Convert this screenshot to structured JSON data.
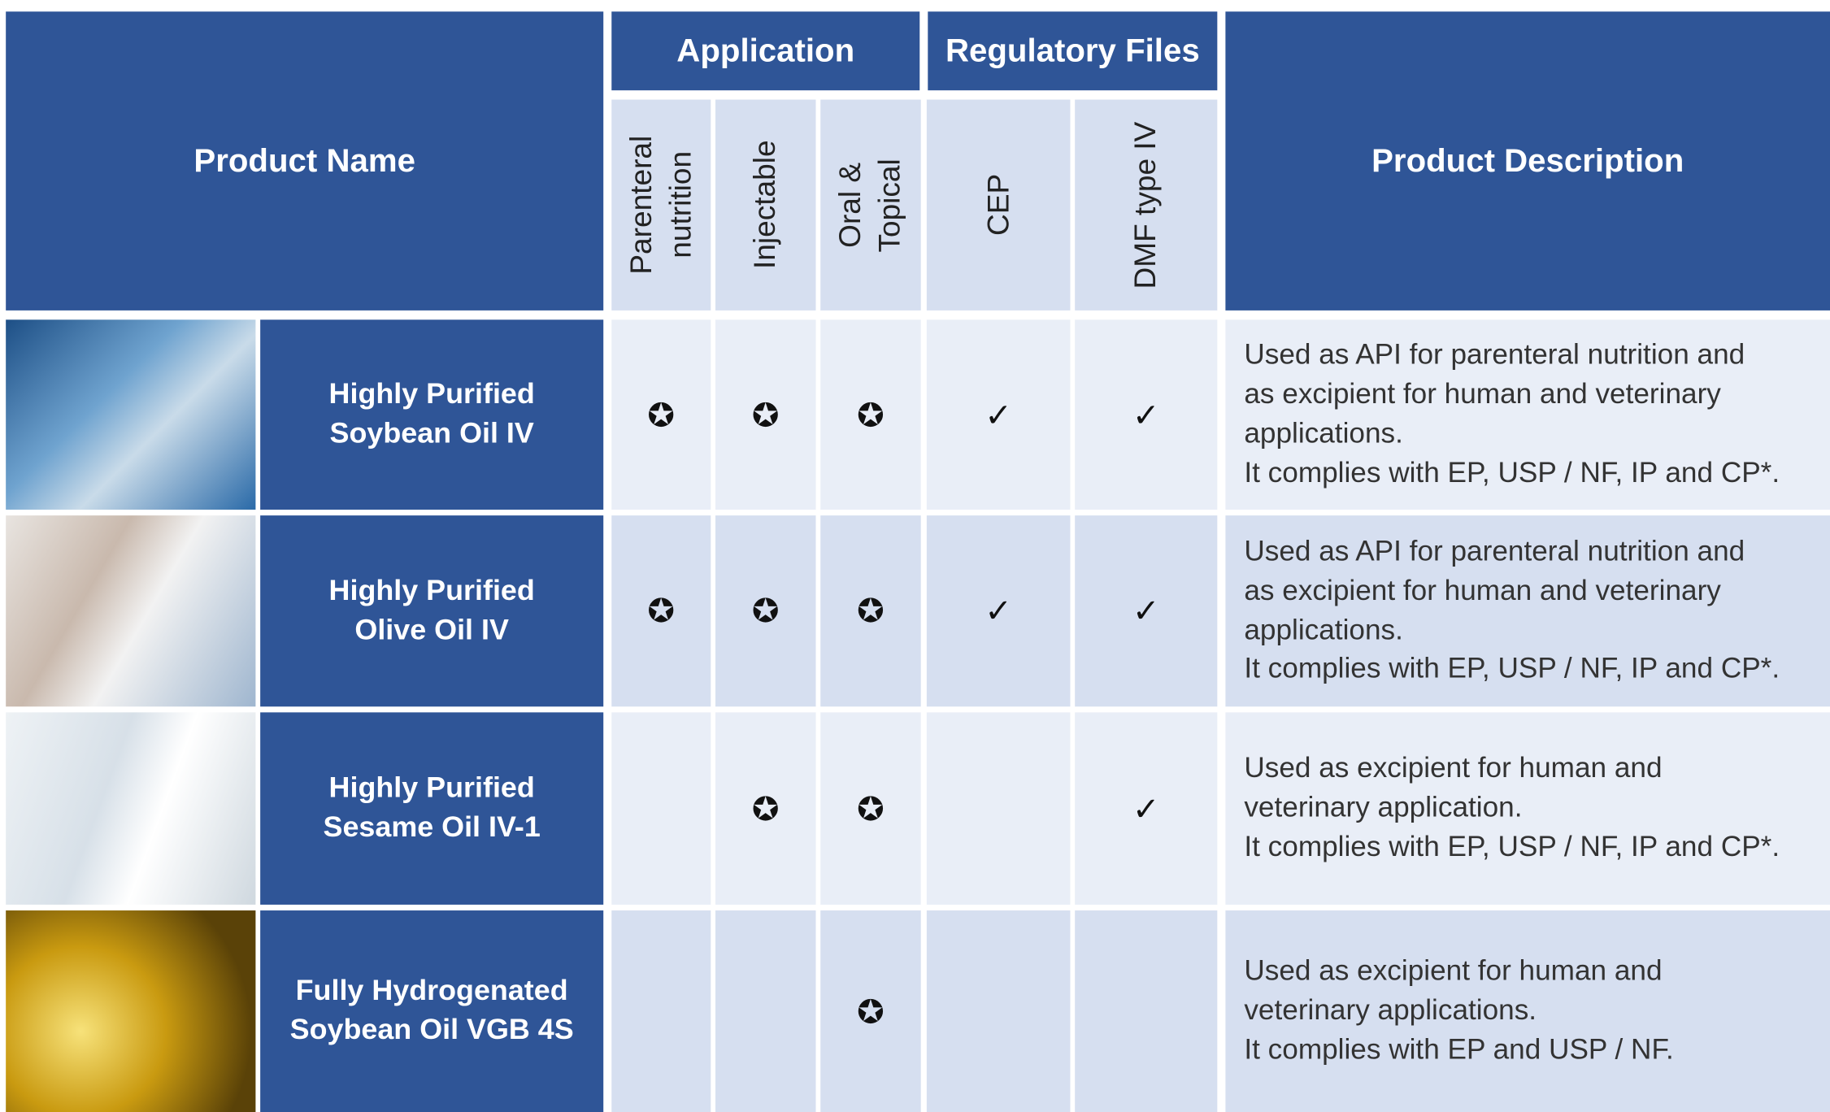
{
  "header": {
    "product_name": "Product Name",
    "product_description": "Product Description",
    "groups": [
      {
        "label": "Application",
        "columns": [
          [
            "Parenteral",
            "nutrition"
          ],
          [
            "Injectable"
          ],
          [
            "Oral &",
            "Topical"
          ]
        ]
      },
      {
        "label": "Regulatory Files",
        "columns": [
          [
            "CEP"
          ],
          [
            "DMF type IV"
          ]
        ]
      }
    ]
  },
  "rows": [
    {
      "name": [
        "Highly Purified",
        "Soybean Oil IV"
      ],
      "marks": [
        "✪",
        "✪",
        "✪",
        "✓",
        "✓"
      ],
      "description": [
        "Used as API for parenteral nutrition and",
        "as excipient for human and veterinary",
        "applications.",
        "It complies with EP, USP / NF, IP and CP*."
      ]
    },
    {
      "name": [
        "Highly Purified",
        "Olive Oil IV"
      ],
      "marks": [
        "✪",
        "✪",
        "✪",
        "✓",
        "✓"
      ],
      "description": [
        "Used as API for parenteral nutrition and",
        "as excipient for human and veterinary",
        "applications.",
        "It complies with EP, USP / NF, IP and CP*."
      ]
    },
    {
      "name": [
        "Highly Purified",
        "Sesame Oil IV-1"
      ],
      "marks": [
        null,
        "✪",
        "✪",
        null,
        "✓"
      ],
      "description": [
        "Used as excipient for human and",
        "veterinary application.",
        "It complies with EP, USP / NF, IP and CP*."
      ]
    },
    {
      "name": [
        "Fully Hydrogenated",
        "Soybean Oil VGB 4S"
      ],
      "marks": [
        null,
        null,
        "✪",
        null,
        null
      ],
      "description": [
        "Used as excipient for human and",
        "veterinary applications.",
        "It complies with EP and USP / NF."
      ]
    }
  ]
}
